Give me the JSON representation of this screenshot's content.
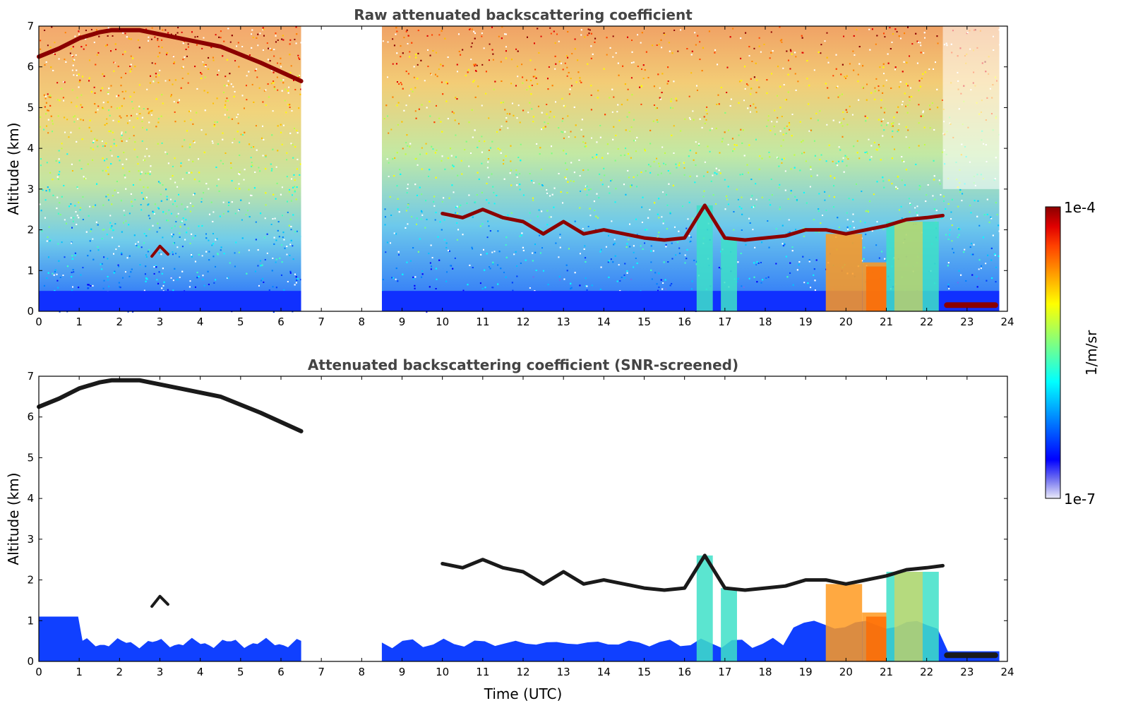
{
  "chart_data": [
    {
      "type": "heatmap",
      "title": "Raw attenuated backscattering coefficient",
      "xlabel": "",
      "ylabel": "Altitude (km)",
      "xlim": [
        0,
        24
      ],
      "ylim": [
        0,
        7
      ],
      "xticks": [
        "0",
        "1",
        "2",
        "3",
        "4",
        "5",
        "6",
        "7",
        "8",
        "9",
        "10",
        "11",
        "12",
        "13",
        "14",
        "15",
        "16",
        "17",
        "18",
        "19",
        "20",
        "21",
        "22",
        "23",
        "24"
      ],
      "yticks": [
        "0",
        "1",
        "2",
        "3",
        "4",
        "5",
        "6",
        "7"
      ],
      "data_gaps": [
        [
          6.5,
          8.5
        ]
      ],
      "features": {
        "boundary_layer_top_km": 0.5,
        "cloud_layer": {
          "x": [
            0,
            0.5,
            1,
            1.5,
            1.8,
            2.5,
            3.5,
            4.5,
            5.5,
            6.5
          ],
          "y": [
            6.25,
            6.45,
            6.7,
            6.85,
            6.9,
            6.9,
            6.7,
            6.5,
            6.1,
            5.65
          ]
        },
        "mid_cloud": {
          "x": [
            10,
            10.5,
            11,
            11.5,
            12,
            12.5,
            13,
            13.5,
            14,
            14.5,
            15,
            15.5,
            16,
            16.5,
            17,
            17.5,
            18,
            18.5,
            19,
            19.5,
            20,
            21,
            21.5,
            22,
            22.4
          ],
          "y": [
            2.4,
            2.3,
            2.5,
            2.3,
            2.2,
            1.9,
            2.2,
            1.9,
            2.0,
            1.9,
            1.8,
            1.75,
            1.8,
            2.6,
            1.8,
            1.75,
            1.8,
            1.85,
            2.0,
            2.0,
            1.9,
            2.1,
            2.25,
            2.3,
            2.35
          ]
        },
        "low_cloud": {
          "x": [
            22.5,
            23.7
          ],
          "y": [
            0.15,
            0.15
          ]
        }
      }
    },
    {
      "type": "heatmap",
      "title": "Attenuated backscattering coefficient (SNR-screened)",
      "xlabel": "Time (UTC)",
      "ylabel": "Altitude (km)",
      "xlim": [
        0,
        24
      ],
      "ylim": [
        0,
        7
      ],
      "xticks": [
        "0",
        "1",
        "2",
        "3",
        "4",
        "5",
        "6",
        "7",
        "8",
        "9",
        "10",
        "11",
        "12",
        "13",
        "14",
        "15",
        "16",
        "17",
        "18",
        "19",
        "20",
        "21",
        "22",
        "23",
        "24"
      ],
      "yticks": [
        "0",
        "1",
        "2",
        "3",
        "4",
        "5",
        "6",
        "7"
      ],
      "data_gaps": [
        [
          6.5,
          8.5
        ]
      ]
    }
  ],
  "colorbar": {
    "label": "1/m/sr",
    "max_label": "1e-4",
    "min_label": "1e-7",
    "scale": "log",
    "colormap": "jet",
    "colors": [
      "#eaeaf8",
      "#6e6ef0",
      "#0000ff",
      "#0040ff",
      "#0080ff",
      "#00c0ff",
      "#00ffff",
      "#40ffc0",
      "#80ff80",
      "#c0ff40",
      "#ffff00",
      "#ffc000",
      "#ff8000",
      "#ff4000",
      "#e00000",
      "#8b0000"
    ]
  }
}
